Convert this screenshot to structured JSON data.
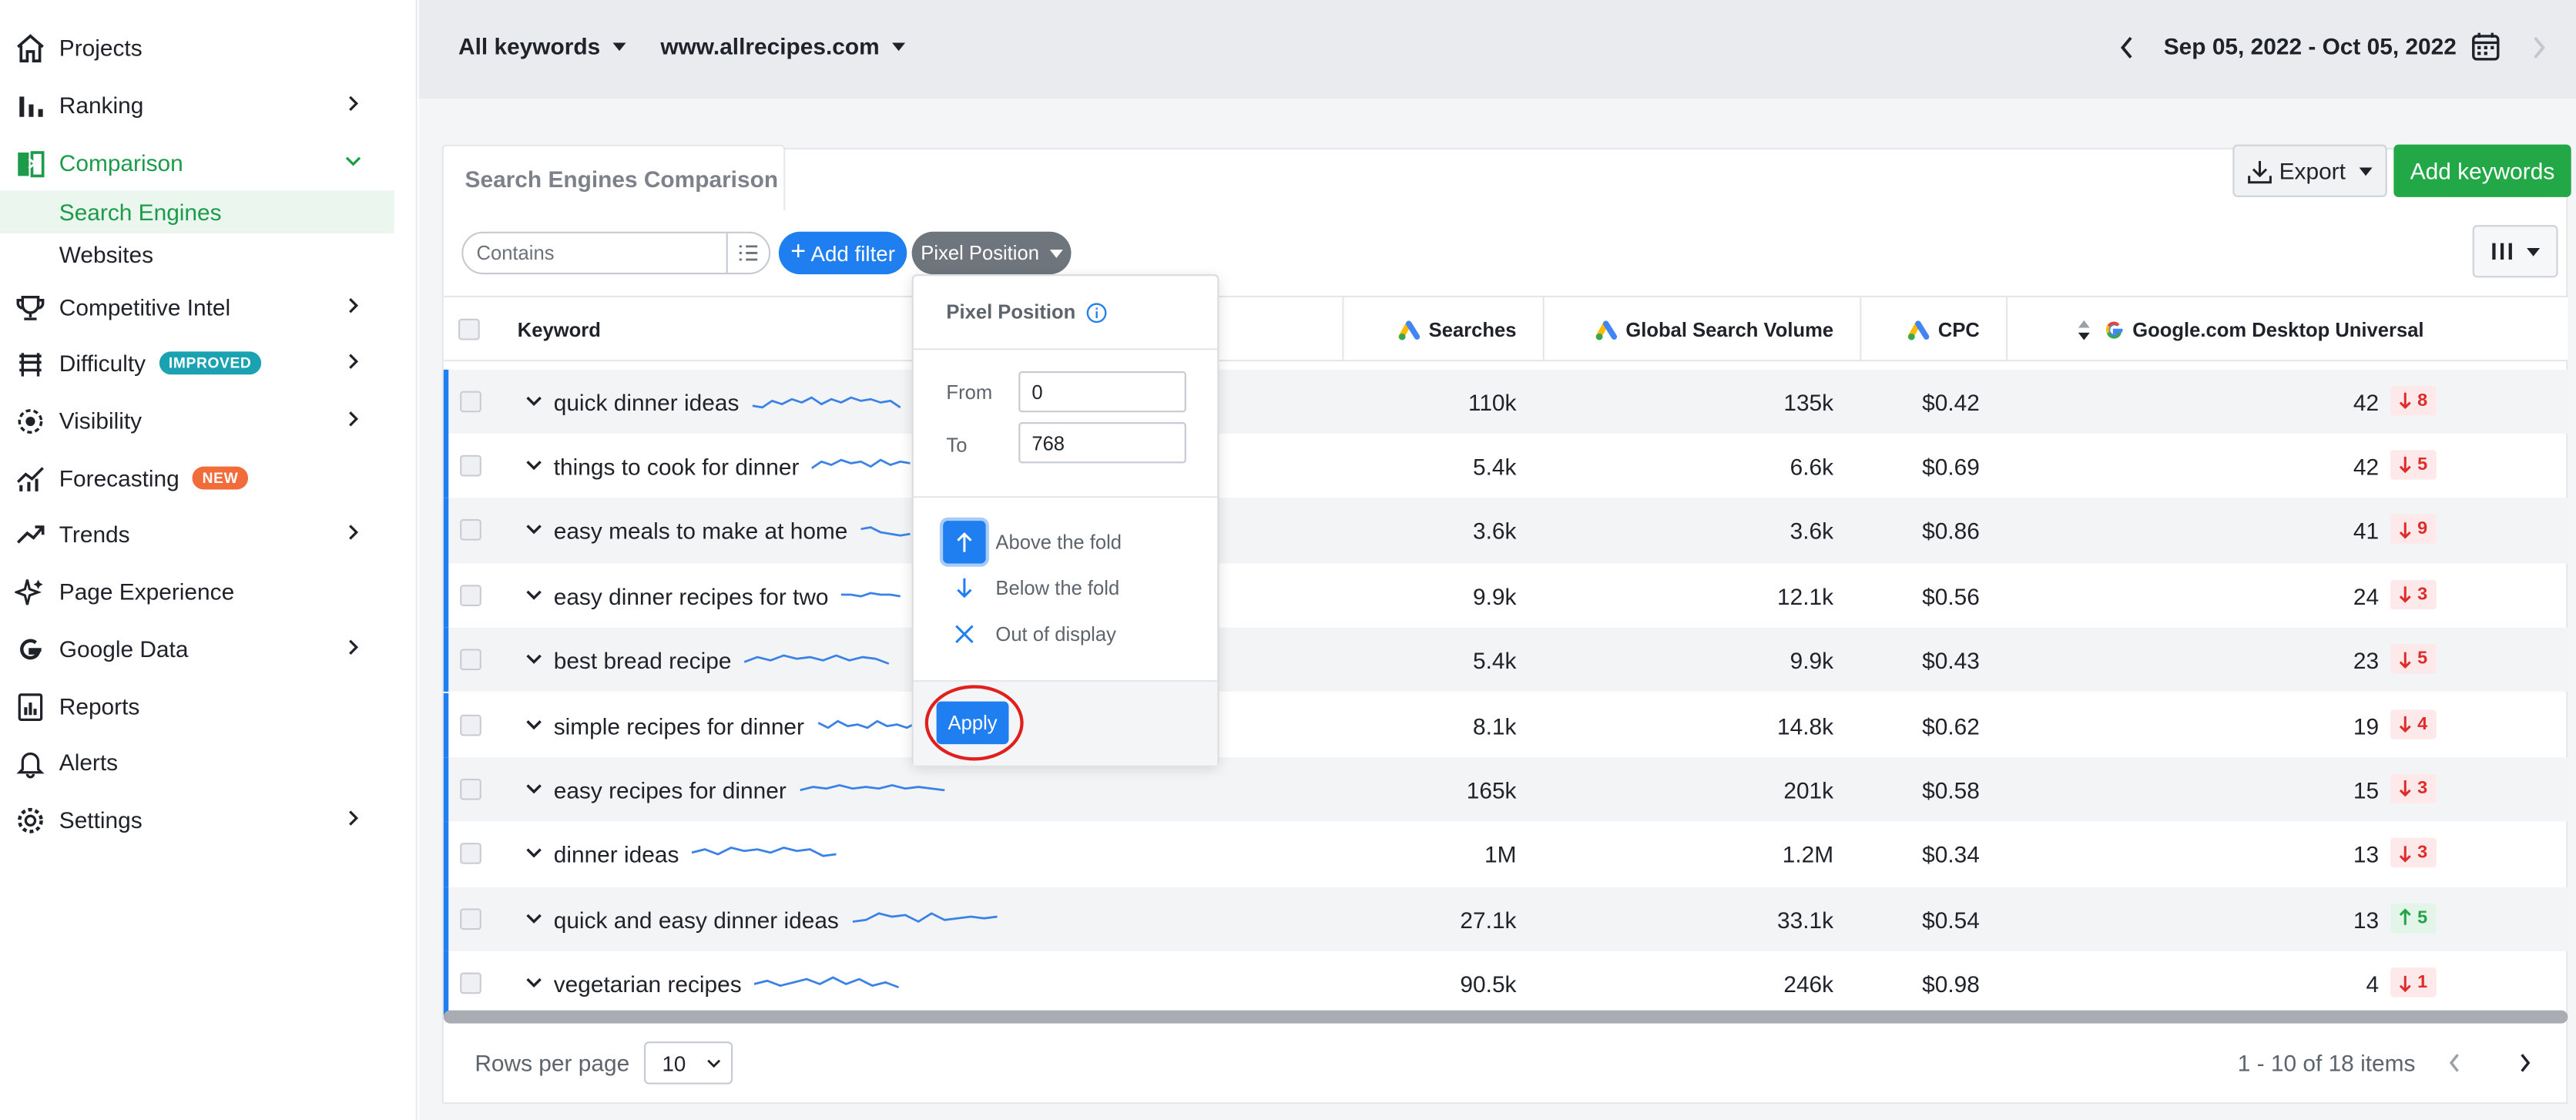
{
  "sidebar": {
    "items": [
      {
        "label": "Projects",
        "icon": "home-icon"
      },
      {
        "label": "Ranking",
        "icon": "bar-chart-icon"
      },
      {
        "label": "Comparison",
        "icon": "comparison-icon"
      },
      {
        "label": "Competitive Intel",
        "icon": "trophy-icon"
      },
      {
        "label": "Difficulty",
        "icon": "hurdle-icon",
        "badge": "IMPROVED"
      },
      {
        "label": "Visibility",
        "icon": "eye-gear-icon"
      },
      {
        "label": "Forecasting",
        "icon": "forecast-chart-icon",
        "badge": "NEW"
      },
      {
        "label": "Trends",
        "icon": "trend-line-icon"
      },
      {
        "label": "Page Experience",
        "icon": "sparkle-icon"
      },
      {
        "label": "Google Data",
        "icon": "google-icon"
      },
      {
        "label": "Reports",
        "icon": "report-icon"
      },
      {
        "label": "Alerts",
        "icon": "bell-icon"
      },
      {
        "label": "Settings",
        "icon": "gear-icon"
      }
    ],
    "sub_items": [
      "Search Engines",
      "Websites"
    ]
  },
  "topbar": {
    "keywords_dropdown": "All keywords",
    "site_dropdown": "www.allrecipes.com",
    "date_range": "Sep 05, 2022 - Oct 05, 2022"
  },
  "main": {
    "tab": "Search Engines Comparison",
    "export_label": "Export",
    "add_keywords_label": "Add keywords",
    "filter_placeholder": "Contains",
    "add_filter_label": "Add filter",
    "pixel_chip_label": "Pixel Position"
  },
  "table": {
    "headers": {
      "keyword": "Keyword",
      "searches": "Searches",
      "gsv": "Global Search Volume",
      "cpc": "CPC",
      "google": "Google.com Desktop Universal"
    },
    "rows": [
      {
        "keyword": "quick dinner ideas",
        "searches": "110k",
        "gsv": "135k",
        "cpc": "$0.42",
        "rank": "42",
        "change": "8",
        "dir": "down"
      },
      {
        "keyword": "things to cook for dinner",
        "searches": "5.4k",
        "gsv": "6.6k",
        "cpc": "$0.69",
        "rank": "42",
        "change": "5",
        "dir": "down"
      },
      {
        "keyword": "easy meals to make at home",
        "searches": "3.6k",
        "gsv": "3.6k",
        "cpc": "$0.86",
        "rank": "41",
        "change": "9",
        "dir": "down"
      },
      {
        "keyword": "easy dinner recipes for two",
        "searches": "9.9k",
        "gsv": "12.1k",
        "cpc": "$0.56",
        "rank": "24",
        "change": "3",
        "dir": "down"
      },
      {
        "keyword": "best bread recipe",
        "searches": "5.4k",
        "gsv": "9.9k",
        "cpc": "$0.43",
        "rank": "23",
        "change": "5",
        "dir": "down"
      },
      {
        "keyword": "simple recipes for dinner",
        "searches": "8.1k",
        "gsv": "14.8k",
        "cpc": "$0.62",
        "rank": "19",
        "change": "4",
        "dir": "down"
      },
      {
        "keyword": "easy recipes for dinner",
        "searches": "165k",
        "gsv": "201k",
        "cpc": "$0.58",
        "rank": "15",
        "change": "3",
        "dir": "down"
      },
      {
        "keyword": "dinner ideas",
        "searches": "1M",
        "gsv": "1.2M",
        "cpc": "$0.34",
        "rank": "13",
        "change": "3",
        "dir": "down"
      },
      {
        "keyword": "quick and easy dinner ideas",
        "searches": "27.1k",
        "gsv": "33.1k",
        "cpc": "$0.54",
        "rank": "13",
        "change": "5",
        "dir": "up"
      },
      {
        "keyword": "vegetarian recipes",
        "searches": "90.5k",
        "gsv": "246k",
        "cpc": "$0.98",
        "rank": "4",
        "change": "1",
        "dir": "down"
      }
    ]
  },
  "footer": {
    "rows_per_page_label": "Rows per page",
    "rows_per_page_value": "10",
    "items_label": "1 - 10 of 18 items"
  },
  "popover": {
    "title": "Pixel Position",
    "from_label": "From",
    "from_value": "0",
    "to_label": "To",
    "to_value": "768",
    "options": [
      "Above the fold",
      "Below the fold",
      "Out of display"
    ],
    "apply_label": "Apply"
  },
  "colors": {
    "accent_green": "#22a846",
    "accent_blue": "#1f7ef0",
    "down_red": "#e02b2b",
    "up_green": "#21a347"
  }
}
